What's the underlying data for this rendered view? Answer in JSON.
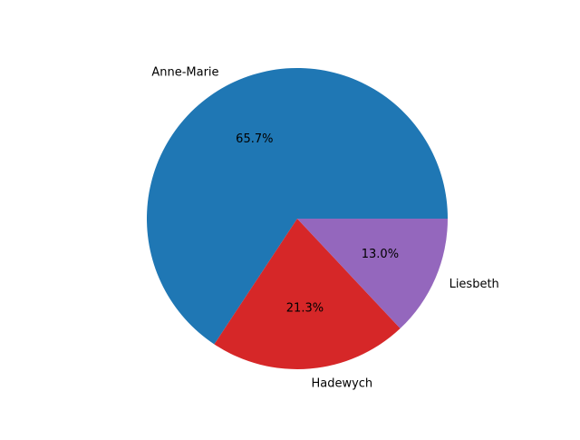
{
  "chart_data": {
    "type": "pie",
    "slices": [
      {
        "label": "Anne-Marie",
        "percent": 65.7,
        "percent_label": "65.7%",
        "color": "#1f77b4"
      },
      {
        "label": "Hadewych",
        "percent": 21.3,
        "percent_label": "21.3%",
        "color": "#d62728"
      },
      {
        "label": "Liesbeth",
        "percent": 13.0,
        "percent_label": "13.0%",
        "color": "#9467bd"
      }
    ],
    "start_angle_deg": 0,
    "direction": "counterclockwise",
    "title": "",
    "legend": "none"
  }
}
